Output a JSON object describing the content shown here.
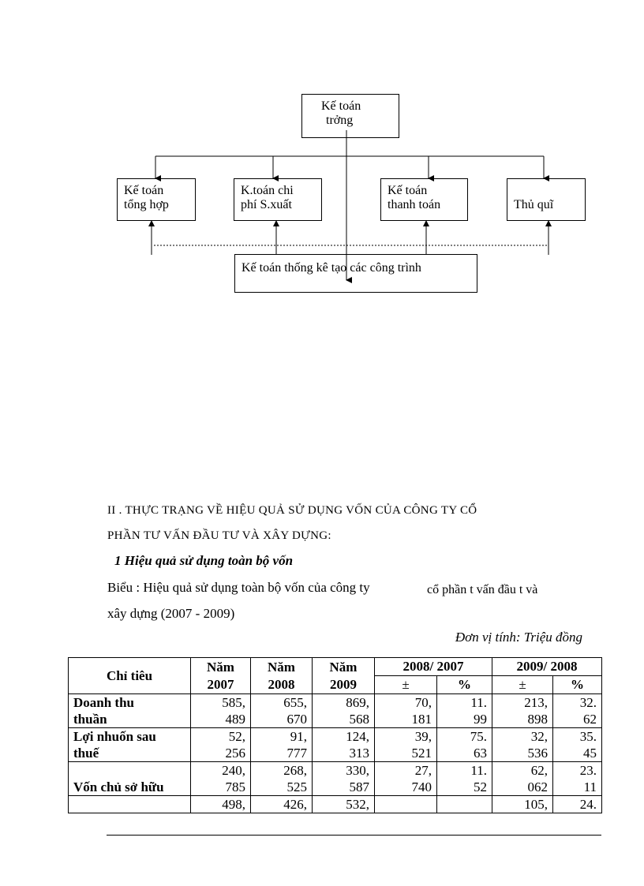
{
  "diagram": {
    "top": [
      "Kế toán",
      "trởng"
    ],
    "boxes": [
      [
        "Kế toán",
        "tổng hợp"
      ],
      [
        "K.toán chi",
        "phí S.xuất"
      ],
      [
        "Kế toán",
        "thanh toán"
      ],
      [
        "Thủ quĩ"
      ]
    ],
    "bottom": "Kế toán thống kê tạo các công trình"
  },
  "heading": {
    "line1": "II . THỰC TRẠNG VỀ HIỆU QUẢ SỬ DỤNG VỐN CỦA CÔNG TY CỔ",
    "line2": "PHẦN TƯ VẤN ĐẦU TƯ VÀ XÂY DỰNG:"
  },
  "subheading": "1 Hiệu quả sử dụng toàn bộ vốn",
  "caption": {
    "line1a": "Biểu : Hiệu quả sử dụng toàn bộ vốn của công ty",
    "line1b": "cổ phần t   vấn đầu t   và",
    "line2": "xây dựng (2007 - 2009)"
  },
  "unit": "Đơn vị tính: Triệu đồng",
  "table": {
    "headers": {
      "c0": "Chỉ tiêu",
      "y1": [
        "Năm",
        "2007"
      ],
      "y2": [
        "Năm",
        "2008"
      ],
      "y3": [
        "Năm",
        "2009"
      ],
      "g1": "2008/ 2007",
      "g2": "2009/ 2008",
      "pm": "±",
      "pct": "%"
    },
    "rows": [
      {
        "label": [
          "Doanh thu",
          "thuần"
        ],
        "cells": [
          [
            "585,",
            "489"
          ],
          [
            "655,",
            "670"
          ],
          [
            "869,",
            "568"
          ],
          [
            "70,",
            "181"
          ],
          [
            "11.",
            "99"
          ],
          [
            "213,",
            "898"
          ],
          [
            "32.",
            "62"
          ]
        ]
      },
      {
        "label": [
          "Lợi nhuốn sau",
          "thuế"
        ],
        "cells": [
          [
            "52,",
            "256"
          ],
          [
            "91,",
            "777"
          ],
          [
            "124,",
            "313"
          ],
          [
            "39,",
            "521"
          ],
          [
            "75.",
            "63"
          ],
          [
            "32,",
            "536"
          ],
          [
            "35.",
            "45"
          ]
        ]
      },
      {
        "label": [
          "",
          "Vốn chủ sở hữu"
        ],
        "cells": [
          [
            "240,",
            "785"
          ],
          [
            "268,",
            "525"
          ],
          [
            "330,",
            "587"
          ],
          [
            "27,",
            "740"
          ],
          [
            "11.",
            "52"
          ],
          [
            "62,",
            "062"
          ],
          [
            "23.",
            "11"
          ]
        ]
      },
      {
        "label": [
          ""
        ],
        "cells": [
          [
            "498,"
          ],
          [
            "426,"
          ],
          [
            "532,"
          ],
          [
            ""
          ],
          [
            ""
          ],
          [
            "105,"
          ],
          [
            "24."
          ]
        ]
      }
    ]
  }
}
